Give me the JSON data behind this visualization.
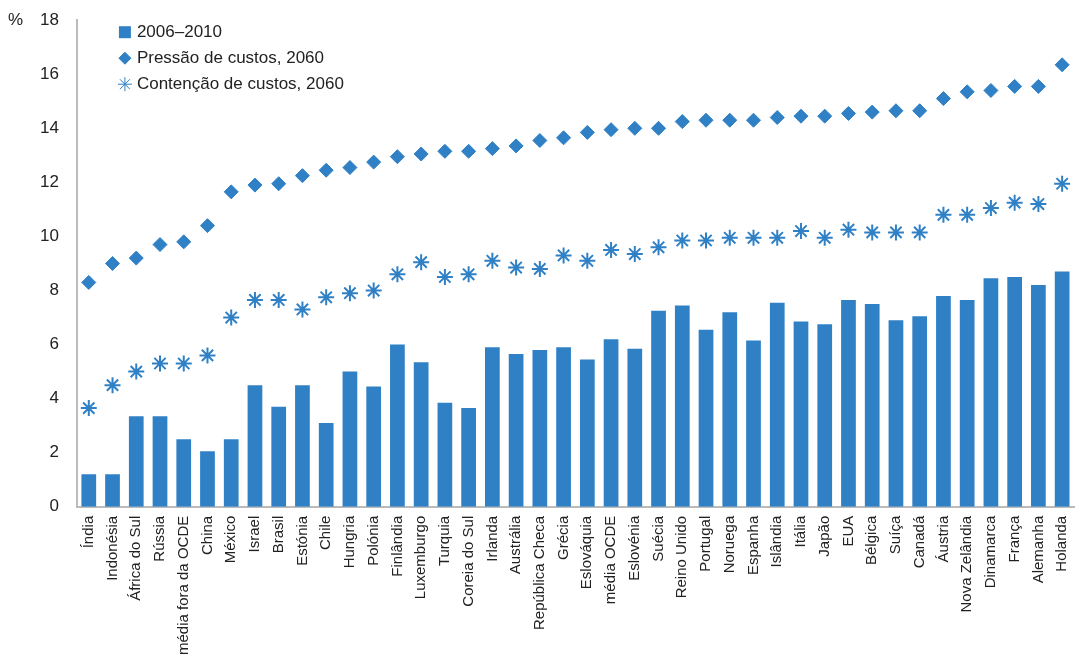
{
  "chart_data": {
    "type": "bar",
    "ylabel": "%",
    "categories": [
      "Índia",
      "Indonésia",
      "África do Sul",
      "Rússia",
      "média fora da OCDE",
      "China",
      "México",
      "Israel",
      "Brasil",
      "Estónia",
      "Chile",
      "Hungria",
      "Polónia",
      "Finlândia",
      "Luxemburgo",
      "Turquia",
      "Coreia do Sul",
      "Irlanda",
      "Austrália",
      "República Checa",
      "Grécia",
      "Eslováquia",
      "média OCDE",
      "Eslovénia",
      "Suécia",
      "Reino Unido",
      "Portugal",
      "Noruega",
      "Espanha",
      "Islândia",
      "Itália",
      "Japão",
      "EUA",
      "Bélgica",
      "Suíça",
      "Canadá",
      "Áustria",
      "Nova Zelândia",
      "Dinamarca",
      "França",
      "Alemanha",
      "Holanda"
    ],
    "series": [
      {
        "name": "2006–2010",
        "color": "#2f80c5",
        "values": [
          1.2,
          1.2,
          3.35,
          3.35,
          2.5,
          2.05,
          2.5,
          4.5,
          3.7,
          4.5,
          3.1,
          5.0,
          4.45,
          6.0,
          5.35,
          3.85,
          3.65,
          5.9,
          5.65,
          5.8,
          5.9,
          5.45,
          6.2,
          5.85,
          7.25,
          7.45,
          6.55,
          7.2,
          6.15,
          7.55,
          6.85,
          6.75,
          7.65,
          7.5,
          6.9,
          7.05,
          7.8,
          7.65,
          8.45,
          8.5,
          8.2,
          8.7
        ]
      },
      {
        "name": "Pressão de custos, 2060",
        "type": "scatter",
        "marker": "diamond",
        "color": "#2f80c5",
        "values": [
          8.3,
          9.0,
          9.2,
          9.7,
          9.8,
          10.4,
          11.65,
          11.9,
          11.95,
          12.25,
          12.45,
          12.55,
          12.75,
          12.95,
          13.05,
          13.15,
          13.15,
          13.25,
          13.35,
          13.55,
          13.65,
          13.85,
          13.95,
          14.0,
          14.0,
          14.25,
          14.3,
          14.3,
          14.3,
          14.4,
          14.45,
          14.45,
          14.55,
          14.6,
          14.65,
          14.65,
          15.1,
          15.35,
          15.4,
          15.55,
          15.55,
          16.35
        ]
      },
      {
        "name": "Contenção de custos, 2060",
        "type": "scatter",
        "marker": "cross",
        "color": "#2f80c5",
        "values": [
          3.65,
          4.5,
          5.0,
          5.3,
          5.3,
          5.6,
          7.0,
          7.65,
          7.65,
          7.3,
          7.75,
          7.9,
          8.0,
          8.6,
          9.05,
          8.5,
          8.6,
          9.1,
          8.85,
          8.8,
          9.3,
          9.1,
          9.5,
          9.35,
          9.6,
          9.85,
          9.85,
          9.95,
          9.95,
          9.95,
          10.2,
          9.95,
          10.25,
          10.15,
          10.15,
          10.15,
          10.8,
          10.8,
          11.05,
          11.25,
          11.2,
          11.95
        ]
      }
    ],
    "ylim": [
      0,
      18
    ],
    "yticks": [
      0,
      2,
      4,
      6,
      8,
      10,
      12,
      14,
      16,
      18
    ],
    "grid": false,
    "legend": "top left"
  }
}
